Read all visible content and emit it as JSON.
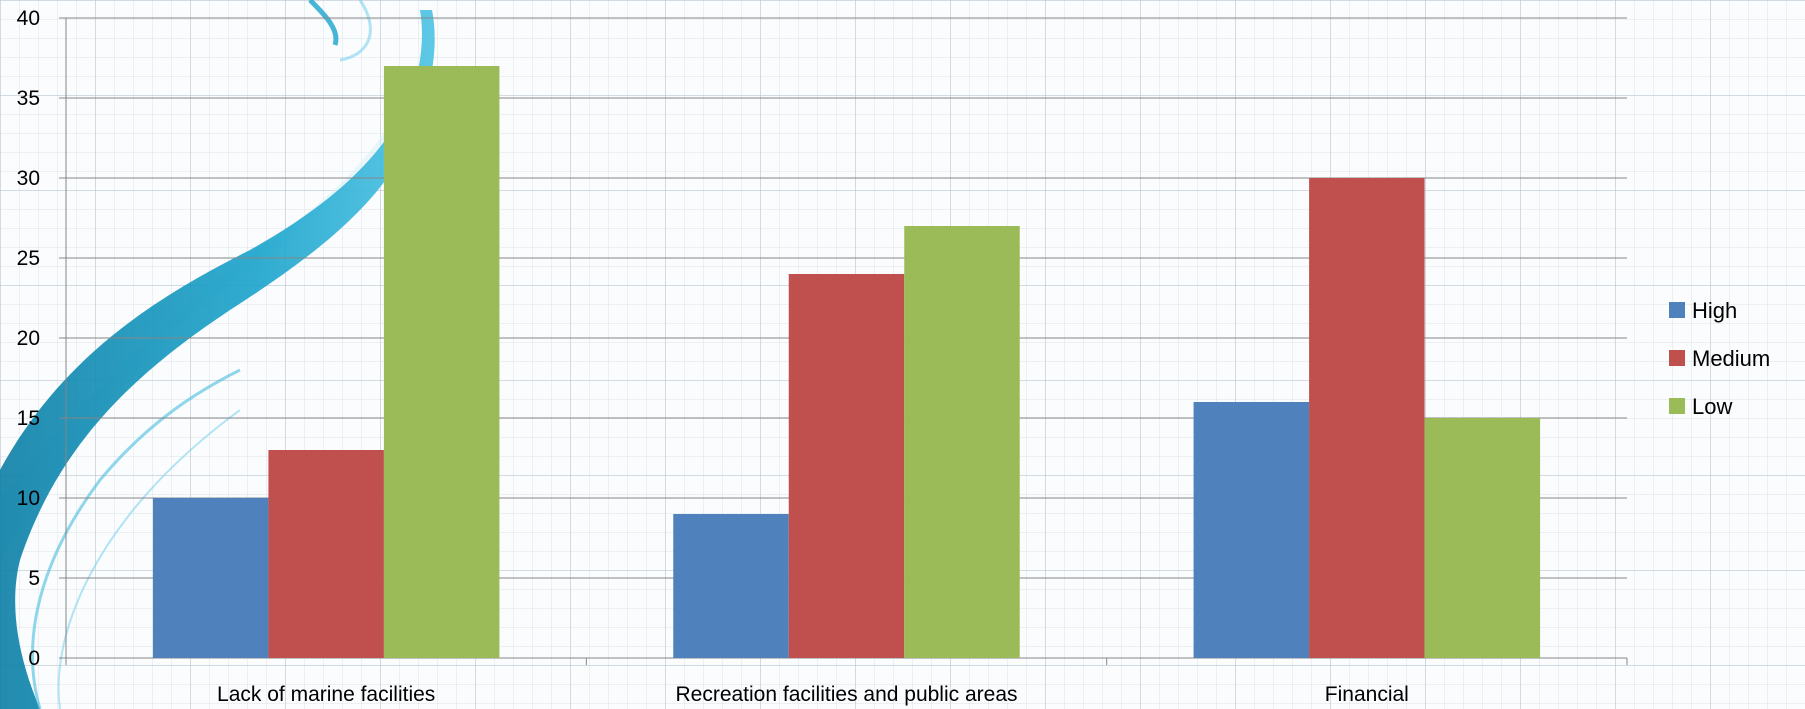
{
  "chart_data": {
    "type": "bar",
    "categories": [
      "Lack of marine facilities",
      "Recreation facilities and public areas",
      "Financial"
    ],
    "series": [
      {
        "name": "High",
        "values": [
          10,
          9,
          16
        ],
        "color": "#4f81bd"
      },
      {
        "name": "Medium",
        "values": [
          13,
          24,
          30
        ],
        "color": "#c0504d"
      },
      {
        "name": "Low",
        "values": [
          37,
          27,
          15
        ],
        "color": "#9bbb59"
      }
    ],
    "yticks": [
      "0",
      "5",
      "10",
      "15",
      "20",
      "25",
      "30",
      "35",
      "40"
    ],
    "ylim": [
      0,
      40
    ],
    "grid": true,
    "legend_position": "right"
  }
}
